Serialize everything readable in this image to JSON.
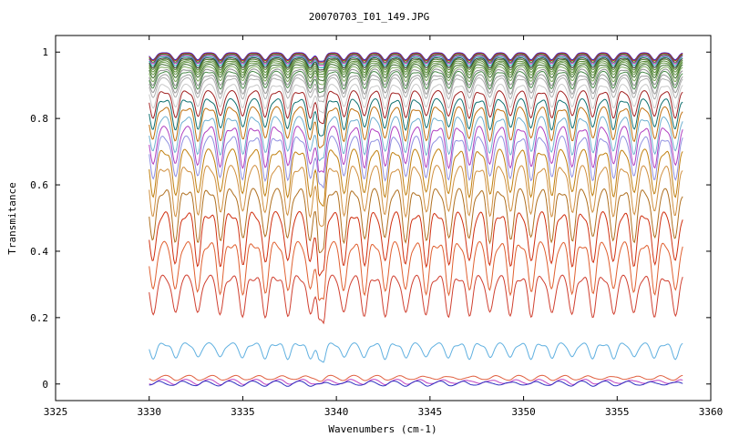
{
  "chart_data": {
    "type": "line",
    "title": "20070703_I01_149.JPG",
    "xlabel": "Wavenumbers (cm-1)",
    "ylabel": "Transmitance",
    "xlim": [
      3325,
      3360
    ],
    "ylim": [
      -0.05,
      1.05
    ],
    "x_ticks": [
      3325,
      3330,
      3335,
      3340,
      3345,
      3350,
      3355,
      3360
    ],
    "y_ticks": [
      0,
      0.2,
      0.4,
      0.6,
      0.8,
      1
    ],
    "y_tick_labels": [
      "0",
      "0.2",
      "0.4",
      "0.6",
      "0.8",
      "1"
    ],
    "x_range_of_data": [
      3330,
      3358.5
    ],
    "absorption_lines_cm1": [
      3330.2,
      3331.4,
      3332.6,
      3333.8,
      3335.0,
      3336.2,
      3337.4,
      3338.6,
      3339.2,
      3340.4,
      3341.5,
      3342.6,
      3343.7,
      3344.8,
      3346.0,
      3347.1,
      3348.2,
      3349.3,
      3350.4,
      3351.5,
      3352.6,
      3353.7,
      3354.8,
      3355.9,
      3357.0,
      3358.1
    ],
    "grid": false,
    "legend": "none",
    "series_levels": [
      0.998,
      0.996,
      0.993,
      0.99,
      0.986,
      0.982,
      0.978,
      0.973,
      0.968,
      0.962,
      0.955,
      0.947,
      0.94,
      0.93,
      0.92,
      0.9,
      0.88,
      0.855,
      0.83,
      0.8,
      0.77,
      0.74,
      0.7,
      0.65,
      0.58,
      0.51,
      0.42,
      0.32,
      0.12,
      0.02,
      0.008,
      0.003
    ],
    "series_colors": [
      "#2222cc",
      "#cc2222",
      "#228822",
      "#aa22aa",
      "#22aaaa",
      "#333333",
      "#4a7a2a",
      "#5a8a3a",
      "#6a9a4a",
      "#3a6a2a",
      "#7aaa5a",
      "#8a8a8a",
      "#4a8a4a",
      "#999999",
      "#b0b0b0",
      "#c8c8c8",
      "#a02020",
      "#107070",
      "#c07010",
      "#70b0d0",
      "#b040c0",
      "#9090e0",
      "#c08010",
      "#d09040",
      "#b07020",
      "#d03010",
      "#e06030",
      "#d04030",
      "#60b0e0",
      "#e06040",
      "#c040c0",
      "#3030c0"
    ]
  }
}
